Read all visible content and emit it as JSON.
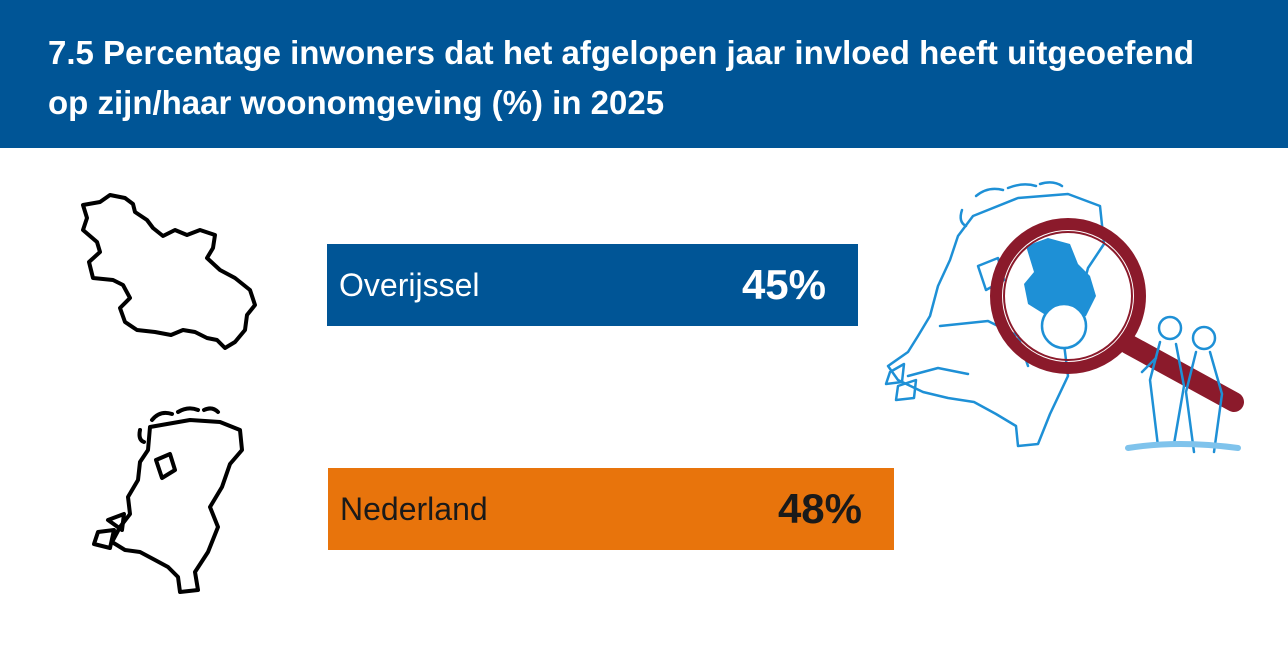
{
  "header": {
    "title": "7.5 Percentage inwoners dat het afgelopen jaar invloed heeft uitgeoefend op zijn/haar woonomgeving (%) in 2025"
  },
  "colors": {
    "header_bg": "#005596",
    "overijssel": "#005596",
    "nederland": "#E8740C",
    "illustration": "#1E90D6",
    "magnifier": "#8B1A2B"
  },
  "icons": [
    "overijssel-outline-icon",
    "netherlands-outline-icon",
    "magnifier-map-illustration"
  ],
  "chart_data": {
    "type": "bar",
    "orientation": "horizontal",
    "categories": [
      "Overijssel",
      "Nederland"
    ],
    "values": [
      45,
      48
    ],
    "value_labels": [
      "45%",
      "48%"
    ],
    "title": "7.5 Percentage inwoners dat het afgelopen jaar invloed heeft uitgeoefend op zijn/haar woonomgeving (%) in 2025",
    "grid": false,
    "legend": "none"
  }
}
